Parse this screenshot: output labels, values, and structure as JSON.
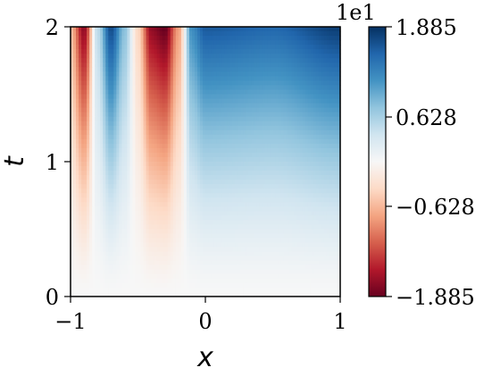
{
  "chart_data": {
    "type": "heatmap",
    "xlabel": "x",
    "ylabel": "t",
    "xlim": [
      -1,
      1
    ],
    "ylim": [
      0,
      2
    ],
    "x_ticks": [
      "−1",
      "0",
      "1"
    ],
    "y_ticks": [
      "0",
      "1",
      "2"
    ],
    "colormap": "RdBu",
    "colorbar": {
      "min": -18.85,
      "max": 18.85,
      "ticks": [
        "1.885",
        "0.628",
        "−0.628",
        "−1.885"
      ],
      "offset_label": "1e1"
    },
    "description_values": {
      "t_samples": [
        0,
        0.5,
        1.0,
        1.5,
        2.0
      ],
      "x_samples": [
        -1.0,
        -0.9,
        -0.8,
        -0.7,
        -0.6,
        -0.5,
        -0.4,
        -0.3,
        -0.2,
        -0.1,
        0.0,
        0.5,
        1.0
      ],
      "value_at_t2": [
        -6,
        -17,
        5,
        17,
        8,
        -4,
        -17,
        -19,
        -8,
        12,
        16,
        15,
        18
      ]
    },
    "colors": {
      "low": "#67001f",
      "mid": "#f7f7f7",
      "high": "#053061"
    }
  }
}
